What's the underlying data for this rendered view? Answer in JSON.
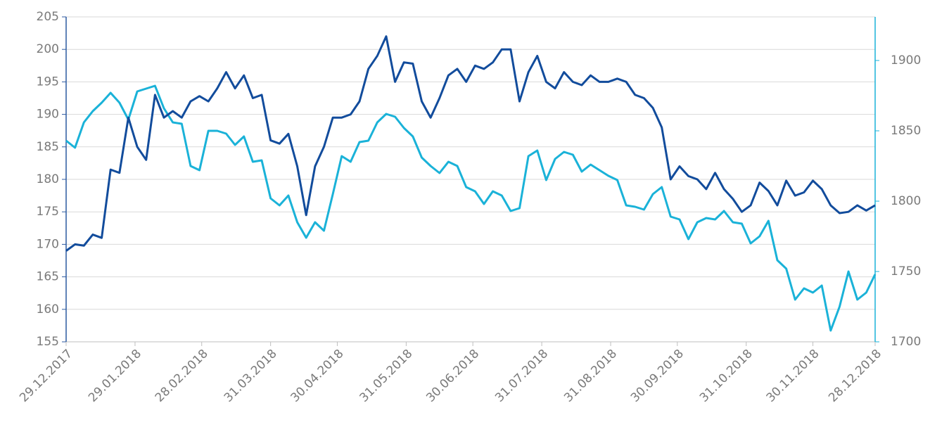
{
  "chart_data": {
    "type": "line",
    "x": [
      "29.12.2017",
      "02.01.2018",
      "06.01.2018",
      "10.01.2018",
      "14.01.2018",
      "18.01.2018",
      "22.01.2018",
      "26.01.2018",
      "30.01.2018",
      "03.02.2018",
      "07.02.2018",
      "11.02.2018",
      "15.02.2018",
      "19.02.2018",
      "23.02.2018",
      "27.02.2018",
      "03.03.2018",
      "07.03.2018",
      "11.03.2018",
      "15.03.2018",
      "19.03.2018",
      "23.03.2018",
      "27.03.2018",
      "31.03.2018",
      "04.04.2018",
      "08.04.2018",
      "12.04.2018",
      "16.04.2018",
      "20.04.2018",
      "24.04.2018",
      "28.04.2018",
      "02.05.2018",
      "06.05.2018",
      "10.05.2018",
      "14.05.2018",
      "18.05.2018",
      "22.05.2018",
      "26.05.2018",
      "30.05.2018",
      "03.06.2018",
      "07.06.2018",
      "11.06.2018",
      "15.06.2018",
      "19.06.2018",
      "23.06.2018",
      "27.06.2018",
      "01.07.2018",
      "05.07.2018",
      "09.07.2018",
      "13.07.2018",
      "17.07.2018",
      "21.07.2018",
      "25.07.2018",
      "29.07.2018",
      "02.08.2018",
      "06.08.2018",
      "10.08.2018",
      "14.08.2018",
      "18.08.2018",
      "22.08.2018",
      "26.08.2018",
      "30.08.2018",
      "03.09.2018",
      "07.09.2018",
      "11.09.2018",
      "15.09.2018",
      "19.09.2018",
      "23.09.2018",
      "27.09.2018",
      "01.10.2018",
      "05.10.2018",
      "09.10.2018",
      "13.10.2018",
      "17.10.2018",
      "21.10.2018",
      "25.10.2018",
      "29.10.2018",
      "02.11.2018",
      "06.11.2018",
      "10.11.2018",
      "14.11.2018",
      "18.11.2018",
      "22.11.2018",
      "26.11.2018",
      "30.11.2018",
      "04.12.2018",
      "08.12.2018",
      "12.12.2018",
      "16.12.2018",
      "20.12.2018",
      "24.12.2018",
      "28.12.2018"
    ],
    "series": [
      {
        "color": "#124c9c",
        "axis": "y",
        "values": [
          169,
          170,
          169.8,
          171.5,
          171,
          181.5,
          181,
          189.5,
          185,
          183,
          193,
          189.5,
          190.5,
          189.5,
          192,
          192.8,
          192,
          194,
          196.5,
          194,
          196,
          192.5,
          193,
          186,
          185.5,
          187,
          182,
          174.5,
          182,
          185,
          189.5,
          189.5,
          190,
          192,
          197,
          199,
          202,
          195,
          198,
          197.8,
          192,
          189.5,
          192.5,
          196,
          197,
          195,
          197.5,
          197,
          198,
          200,
          200,
          192,
          196.5,
          199,
          195,
          194,
          196.5,
          195,
          194.5,
          196,
          195,
          195,
          195.5,
          195,
          193,
          192.5,
          191,
          188,
          180,
          182,
          180.5,
          180,
          178.5,
          181,
          178.5,
          177,
          175,
          176,
          179.5,
          178.2,
          176,
          179.8,
          177.5,
          178,
          179.8,
          178.5,
          176,
          174.8,
          175,
          176,
          175.2,
          176
        ]
      },
      {
        "color": "#1ab2d8",
        "axis": "y2",
        "values": [
          1843,
          1838,
          1856,
          1864,
          1870,
          1877,
          1870,
          1858,
          1878,
          1880,
          1882,
          1866,
          1856,
          1855,
          1825,
          1822,
          1850,
          1850,
          1848,
          1840,
          1846,
          1828,
          1829,
          1802,
          1797,
          1804,
          1785,
          1774,
          1785,
          1779,
          1805,
          1832,
          1828,
          1842,
          1843,
          1856,
          1862,
          1860,
          1852,
          1846,
          1831,
          1825,
          1820,
          1828,
          1825,
          1810,
          1807,
          1798,
          1807,
          1804,
          1793,
          1795,
          1832,
          1836,
          1815,
          1830,
          1835,
          1833,
          1821,
          1826,
          1822,
          1818,
          1815,
          1797,
          1796,
          1794,
          1805,
          1810,
          1789,
          1787,
          1773,
          1785,
          1788,
          1787,
          1793,
          1785,
          1784,
          1770,
          1775,
          1786,
          1758,
          1752,
          1730,
          1738,
          1735,
          1740,
          1708,
          1725,
          1750,
          1730,
          1735,
          1748
        ]
      }
    ],
    "xlim": [
      "29.12.2017",
      "28.12.2018"
    ],
    "xticks": [
      "29.12.2017",
      "29.01.2018",
      "28.02.2018",
      "31.03.2018",
      "30.04.2018",
      "31.05.2018",
      "30.06.2018",
      "31.07.2018",
      "31.08.2018",
      "30.09.2018",
      "31.10.2018",
      "30.11.2018",
      "28.12.2018"
    ],
    "ylim": [
      155,
      205
    ],
    "yticks": [
      155,
      160,
      165,
      170,
      175,
      180,
      185,
      190,
      195,
      200,
      205
    ],
    "y2lim": [
      1700,
      1931
    ],
    "y2ticks": [
      1700,
      1750,
      1800,
      1850,
      1900
    ],
    "grid": true
  }
}
